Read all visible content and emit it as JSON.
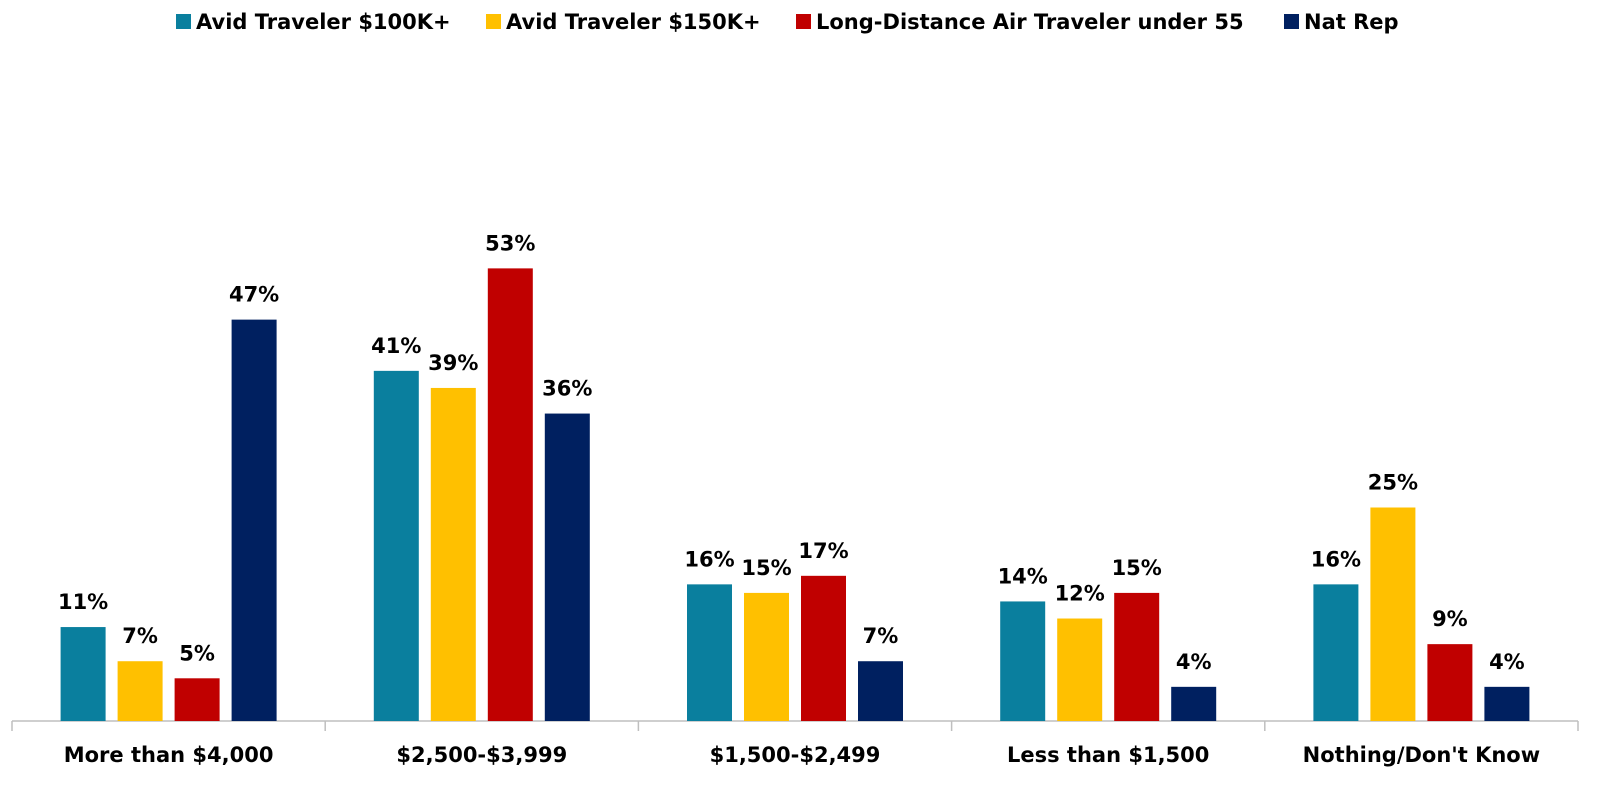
{
  "chart_data": {
    "type": "bar",
    "categories": [
      "More than $4,000",
      "$2,500-$3,999",
      "$1,500-$2,499",
      "Less than $1,500",
      "Nothing/Don't Know"
    ],
    "series": [
      {
        "name": "Avid Traveler $100K+",
        "color": "#0a7f9e",
        "values": [
          11,
          41,
          16,
          14,
          16
        ],
        "value_labels": [
          "11%",
          "41%",
          "16%",
          "14%",
          "16%"
        ]
      },
      {
        "name": "Avid Traveler $150K+",
        "color": "#ffc000",
        "values": [
          7,
          39,
          15,
          12,
          25
        ],
        "value_labels": [
          "7%",
          "39%",
          "15%",
          "12%",
          "25%"
        ]
      },
      {
        "name": "Long-Distance Air Traveler under 55",
        "color": "#c00000",
        "values": [
          5,
          53,
          17,
          15,
          9
        ],
        "value_labels": [
          "5%",
          "53%",
          "17%",
          "15%",
          "9%"
        ]
      },
      {
        "name": "Nat Rep",
        "color": "#002060",
        "values": [
          47,
          36,
          7,
          4,
          4
        ],
        "value_labels": [
          "47%",
          "36%",
          "7%",
          "4%",
          "4%"
        ]
      }
    ],
    "legend": "top"
  }
}
